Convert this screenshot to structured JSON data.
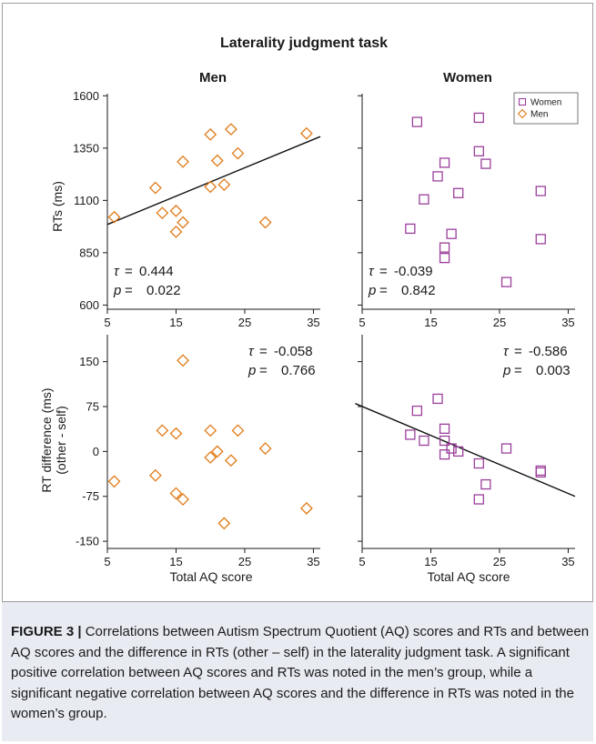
{
  "figure": {
    "title": "Laterality judgment task",
    "column_titles": [
      "Men",
      "Women"
    ],
    "row_ylabels": [
      [
        "RTs (ms)"
      ],
      [
        "RT difference (ms)",
        "(other - self)"
      ]
    ],
    "xlabel": "Total AQ score",
    "colors": {
      "men": "#e07b18",
      "women": "#9b3f9b",
      "line": "#111111",
      "axis": "#1a1a1a"
    }
  },
  "caption": {
    "label": "FIGURE 3 |",
    "text": " Correlations between Autism Spectrum Quotient (AQ) scores and RTs and between AQ scores and the difference in RTs (other – self) in the laterality judgment task. A significant positive correlation between AQ scores and RTs was noted in the men’s group, while a significant negative correlation between AQ scores and the difference in RTs was noted in the women’s group."
  },
  "chart_data": [
    {
      "type": "scatter",
      "column": "Men",
      "ylabel": "RTs (ms)",
      "xlabel": "",
      "xlim": [
        5,
        36
      ],
      "ylim": [
        580,
        1610
      ],
      "xticks": [
        "5",
        "15",
        "25",
        "35"
      ],
      "yticks": [
        "600",
        "850",
        "1100",
        "1350",
        "1600"
      ],
      "marker": "diamond",
      "color": "#e07b18",
      "points": [
        [
          6,
          1020
        ],
        [
          12,
          1160
        ],
        [
          13,
          1040
        ],
        [
          15,
          1050
        ],
        [
          15,
          950
        ],
        [
          16,
          1285
        ],
        [
          16,
          995
        ],
        [
          20,
          1415
        ],
        [
          20,
          1165
        ],
        [
          21,
          1290
        ],
        [
          22,
          1175
        ],
        [
          23,
          1440
        ],
        [
          24,
          1325
        ],
        [
          28,
          995
        ],
        [
          34,
          1420
        ]
      ],
      "fit_line": [
        [
          5,
          985
        ],
        [
          36,
          1405
        ]
      ],
      "stats": {
        "tau_label": "τ =",
        "tau": "0.444",
        "p_label": "p =",
        "p": "0.022"
      }
    },
    {
      "type": "scatter",
      "column": "Women",
      "ylabel": "",
      "xlabel": "",
      "xlim": [
        5,
        36
      ],
      "ylim": [
        580,
        1610
      ],
      "xticks": [
        "5",
        "15",
        "25",
        "35"
      ],
      "yticks": [
        "600",
        "850",
        "1100",
        "1350",
        "1600"
      ],
      "marker": "square",
      "color": "#9b3f9b",
      "points": [
        [
          12,
          965
        ],
        [
          13,
          1475
        ],
        [
          14,
          1105
        ],
        [
          16,
          1215
        ],
        [
          17,
          1280
        ],
        [
          17,
          875
        ],
        [
          17,
          825
        ],
        [
          18,
          940
        ],
        [
          19,
          1135
        ],
        [
          22,
          1495
        ],
        [
          22,
          1335
        ],
        [
          23,
          1275
        ],
        [
          26,
          710
        ],
        [
          31,
          1145
        ],
        [
          31,
          915
        ]
      ],
      "fit_line": null,
      "legend": {
        "position": "top-right",
        "entries": [
          {
            "label": "Women",
            "marker": "square",
            "color": "#9b3f9b"
          },
          {
            "label": "Men",
            "marker": "diamond",
            "color": "#e07b18"
          }
        ]
      },
      "stats": {
        "tau_label": "τ =",
        "tau": "-0.039",
        "p_label": "p =",
        "p": "0.842"
      }
    },
    {
      "type": "scatter",
      "column": "Men",
      "ylabel": "RT difference (ms) (other - self)",
      "xlabel": "Total AQ score",
      "xlim": [
        5,
        36
      ],
      "ylim": [
        -162,
        195
      ],
      "xticks": [
        "5",
        "15",
        "25",
        "35"
      ],
      "yticks": [
        "-150",
        "-75",
        "0",
        "75",
        "150"
      ],
      "marker": "diamond",
      "color": "#e07b18",
      "points": [
        [
          6,
          -50
        ],
        [
          12,
          -40
        ],
        [
          13,
          35
        ],
        [
          15,
          30
        ],
        [
          15,
          -70
        ],
        [
          16,
          152
        ],
        [
          16,
          -80
        ],
        [
          20,
          35
        ],
        [
          20,
          -10
        ],
        [
          21,
          0
        ],
        [
          22,
          -120
        ],
        [
          23,
          -15
        ],
        [
          24,
          35
        ],
        [
          28,
          5
        ],
        [
          34,
          -95
        ]
      ],
      "fit_line": null,
      "stats": {
        "tau_label": "τ =",
        "tau": "-0.058",
        "p_label": "p =",
        "p": "0.766"
      }
    },
    {
      "type": "scatter",
      "column": "Women",
      "ylabel": "",
      "xlabel": "Total AQ score",
      "xlim": [
        5,
        36
      ],
      "ylim": [
        -162,
        195
      ],
      "xticks": [
        "5",
        "15",
        "25",
        "35"
      ],
      "yticks": [
        "-150",
        "-75",
        "0",
        "75",
        "150"
      ],
      "marker": "square",
      "color": "#9b3f9b",
      "points": [
        [
          12,
          28
        ],
        [
          13,
          68
        ],
        [
          14,
          18
        ],
        [
          16,
          88
        ],
        [
          17,
          38
        ],
        [
          17,
          18
        ],
        [
          17,
          -5
        ],
        [
          18,
          5
        ],
        [
          19,
          0
        ],
        [
          22,
          -20
        ],
        [
          22,
          -80
        ],
        [
          23,
          -55
        ],
        [
          26,
          5
        ],
        [
          31,
          -35
        ],
        [
          31,
          -32
        ]
      ],
      "fit_line": [
        [
          4,
          80
        ],
        [
          36,
          -75
        ]
      ],
      "stats": {
        "tau_label": "τ =",
        "tau": "-0.586",
        "p_label": "p =",
        "p": "0.003"
      }
    }
  ]
}
